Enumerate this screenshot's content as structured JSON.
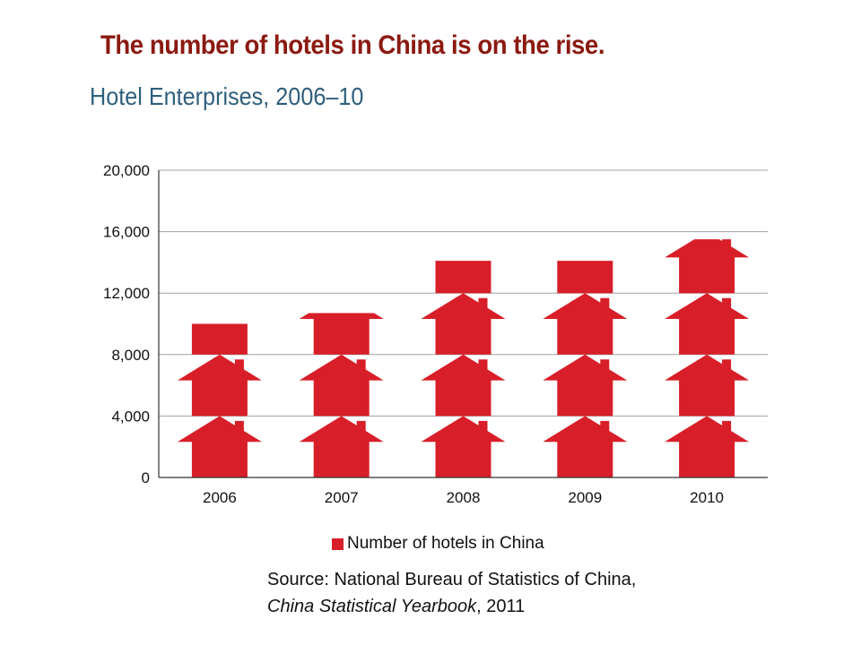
{
  "headline": "The number of hotels in China is on the rise.",
  "chart_data": {
    "type": "bar",
    "title": "Hotel Enterprises, 2006–10",
    "xlabel": "",
    "ylabel": "",
    "categories": [
      "2006",
      "2007",
      "2008",
      "2009",
      "2010"
    ],
    "series": [
      {
        "name": "Number of hotels in China",
        "values": [
          10000,
          10700,
          14100,
          14100,
          15500
        ]
      }
    ],
    "ylim": [
      0,
      20000
    ],
    "yticks": [
      0,
      4000,
      8000,
      12000,
      16000,
      20000
    ],
    "ytick_labels": [
      "0",
      "4,000",
      "8,000",
      "12,000",
      "16,000",
      "20,000"
    ],
    "grid": true,
    "legend_position": "bottom-center",
    "bar_color": "#d81e28",
    "mark_icon": "house-icon",
    "units_per_icon": 4000
  },
  "source": {
    "line1": "Source: National Bureau of Statistics of China,",
    "line2_italic": "China Statistical Yearbook",
    "line2_rest": ", 2011"
  },
  "colors": {
    "headline": "#8b1a10",
    "subtitle": "#2e5f7d",
    "bars": "#d81e28",
    "grid": "#a0a0a0"
  }
}
